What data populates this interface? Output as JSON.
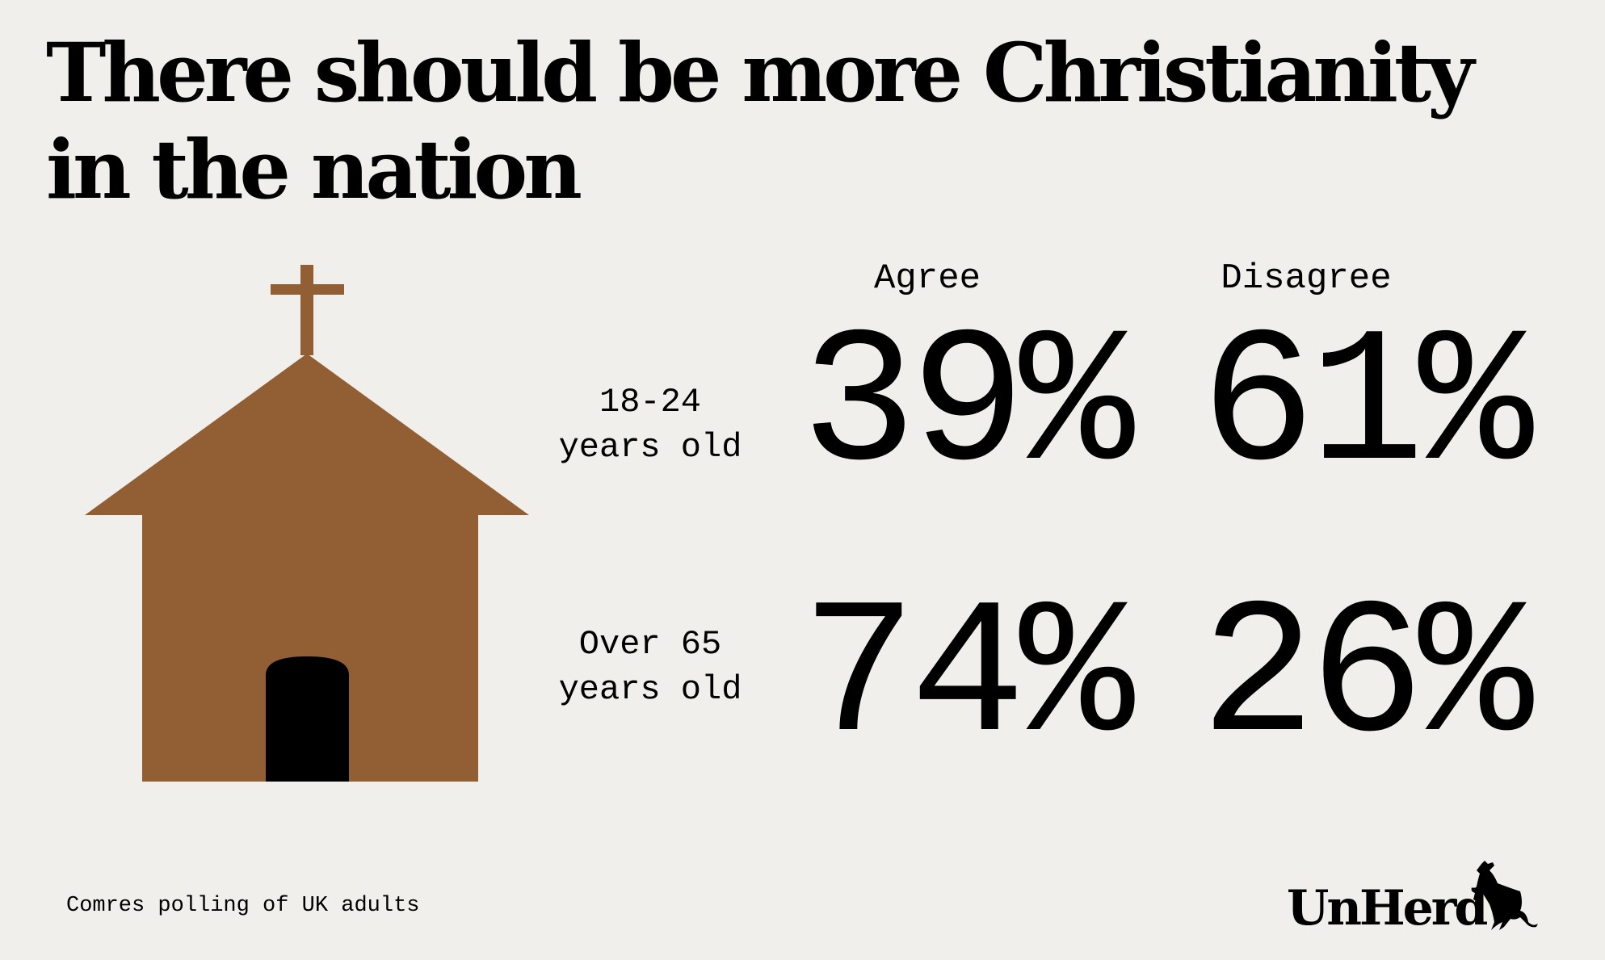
{
  "title": {
    "line1": "There should be more Christianity",
    "line2": "in the nation"
  },
  "columns": {
    "agree": "Agree",
    "disagree": "Disagree"
  },
  "rows": [
    {
      "label_line1": "18-24",
      "label_line2": "years old",
      "agree": "39%",
      "disagree": "61%"
    },
    {
      "label_line1": "Over 65",
      "label_line2": "years old",
      "agree": "74%",
      "disagree": "26%"
    }
  ],
  "footnote": "Comres polling of UK adults",
  "logo": {
    "text": "UnHerd",
    "icon": "cow-icon"
  },
  "illustration": {
    "icon": "church-icon"
  },
  "colors": {
    "background": "#f0efeb",
    "church": "#925f35",
    "text": "#000000"
  }
}
